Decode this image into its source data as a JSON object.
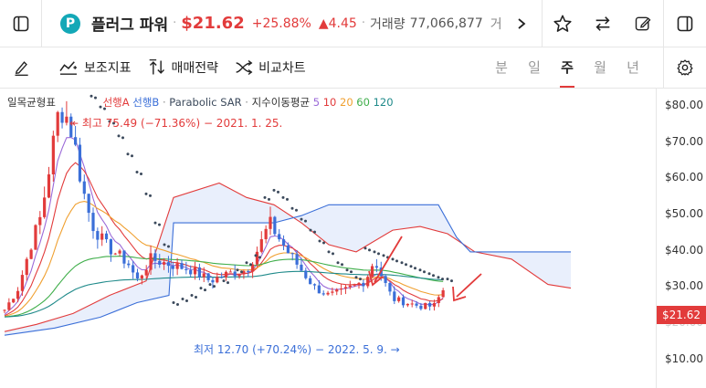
{
  "header": {
    "stock_name": "플러그 파워",
    "logo_letter": "P",
    "price": "$21.62",
    "change_pct": "+25.88%",
    "change_abs": "▲4.45",
    "volume_label": "거래량",
    "volume_value": "77,066,877",
    "extra_label": "거래"
  },
  "toolbar": {
    "indicators_label": "보조지표",
    "trading_label": "매매전략",
    "compare_label": "비교차트",
    "periods": [
      "분",
      "일",
      "주",
      "월",
      "년"
    ],
    "active_period": "주"
  },
  "chart_legend": {
    "ichimoku": "일목균형표",
    "spanA": "선행A",
    "spanB": "선행B",
    "sar": "Parabolic SAR",
    "ema": "지수이동평균",
    "ema_periods": [
      "5",
      "10",
      "20",
      "60",
      "120"
    ]
  },
  "annotations": {
    "high": "최고 75.49 (−71.36%) − 2021. 1. 25.",
    "low": "최저 12.70 (+70.24%) − 2022. 5. 9."
  },
  "colors": {
    "up": "#e23b3b",
    "down": "#3b6fd8",
    "spanA": "#e23b3b",
    "spanB": "#3b6fd8",
    "ema5": "#9b6ad8",
    "ema10": "#e23b3b",
    "ema20": "#f0a030",
    "ema60": "#3fae4a",
    "ema120": "#1f8a8a",
    "sar": "#3c4a5c"
  },
  "chart_data": {
    "type": "candlestick",
    "yaxis": {
      "labels": [
        "$80.00",
        "$70.00",
        "$60.00",
        "$50.00",
        "$40.00",
        "$30.00",
        "$20.00",
        "$10.00"
      ],
      "range": [
        5,
        83
      ]
    },
    "current_price": "$21.62",
    "last_close": 21.62,
    "high": 75.49,
    "low": 12.7
  }
}
